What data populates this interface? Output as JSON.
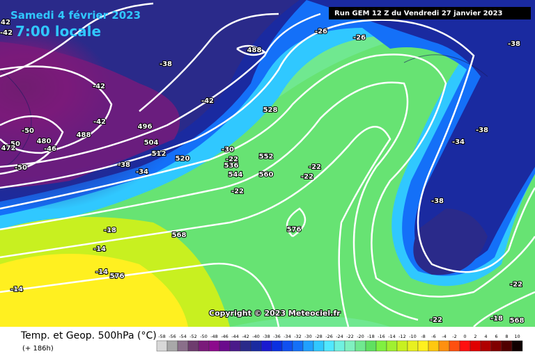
{
  "header": {
    "date": "Samedi 4 février 2023",
    "time": "7:00 locale",
    "run": "Run GEM 12 Z du Vendredi 27 janvier 2023"
  },
  "copyright": "Copyright © 2023 Meteociel.fr",
  "footer": {
    "title": "Temp. et Geop. 500hPa (°C)",
    "lead": "(+ 186h)"
  },
  "map": {
    "labels": [
      -26,
      -26,
      -38,
      488,
      -38,
      -42,
      -42,
      528,
      -42,
      496,
      -50,
      488,
      480,
      50,
      -46,
      472,
      504,
      -30,
      512,
      520,
      -22,
      552,
      -34,
      -38,
      -22,
      536,
      -38,
      544,
      -34,
      -50,
      560,
      -22,
      -22,
      -38,
      -18,
      568,
      576,
      -14,
      -14,
      576,
      -14,
      -22,
      -18,
      568,
      -22,
      42,
      -42
    ]
  },
  "legend": {
    "labels": [
      -58,
      -56,
      -54,
      -52,
      -50,
      -48,
      -46,
      -44,
      -42,
      -40,
      -38,
      -36,
      -34,
      -32,
      -30,
      -28,
      -26,
      -24,
      -22,
      -20,
      -18,
      -16,
      -14,
      -12,
      -10,
      -8,
      -6,
      -4,
      -2,
      0,
      2,
      4,
      6,
      8,
      10
    ],
    "colors": [
      "#d8d8d8",
      "#a8a8a8",
      "#8a6f8a",
      "#6e3c6e",
      "#7a1a7a",
      "#8c0a8c",
      "#6a0a8c",
      "#4a1a8a",
      "#2a2a8a",
      "#1a2aa0",
      "#1a1ad0",
      "#0a30e0",
      "#1050f0",
      "#1470f8",
      "#20a0ff",
      "#30c8ff",
      "#50e8ff",
      "#70f0e0",
      "#80f0c0",
      "#70e890",
      "#60e060",
      "#80f040",
      "#a0f030",
      "#c8f020",
      "#e8f020",
      "#fff020",
      "#ffc810",
      "#ff9010",
      "#ff5010",
      "#ff1010",
      "#e00000",
      "#b00000",
      "#800000",
      "#500000",
      "#100000"
    ]
  }
}
